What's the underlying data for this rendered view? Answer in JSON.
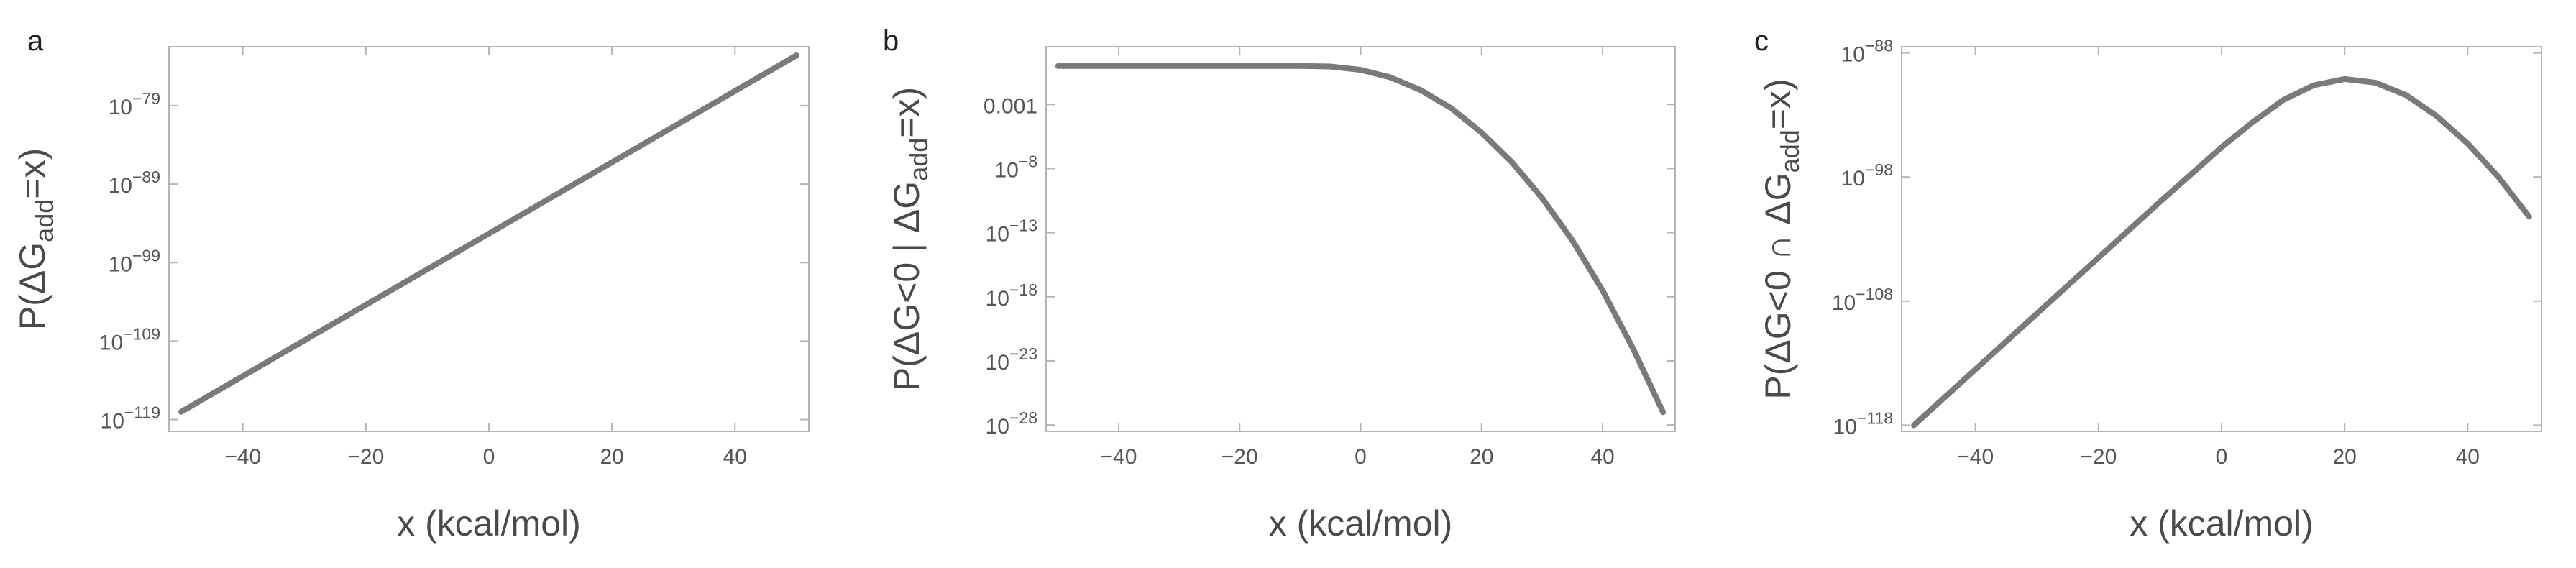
{
  "chart_data": [
    {
      "type": "line",
      "panel": "a",
      "xlabel": "x (kcal/mol)",
      "ylabel": "P(ΔG_add=x)",
      "ylabel_main": "P(ΔG",
      "ylabel_sub": "add",
      "ylabel_tail": "=x)",
      "y_scale": "log",
      "xlim": [
        -52,
        52
      ],
      "ylim_exp": [
        -120.5,
        -71.5
      ],
      "x_ticks": [
        -40,
        -20,
        0,
        20,
        40
      ],
      "x_tick_labels": [
        "−40",
        "−20",
        "0",
        "20",
        "40"
      ],
      "y_ticks_exp": [
        -119,
        -109,
        -99,
        -89,
        -79
      ],
      "y_tick_labels": [
        {
          "base": "10",
          "exp": "−119"
        },
        {
          "base": "10",
          "exp": "−109"
        },
        {
          "base": "10",
          "exp": "−99"
        },
        {
          "base": "10",
          "exp": "−89"
        },
        {
          "base": "10",
          "exp": "−79"
        }
      ],
      "series": [
        {
          "x": [
            -50,
            0,
            50
          ],
          "y_exp": [
            -118.0,
            -95.3,
            -72.6
          ]
        }
      ]
    },
    {
      "type": "line",
      "panel": "b",
      "xlabel": "x (kcal/mol)",
      "ylabel": "P(ΔG<0 | ΔG_add=x)",
      "ylabel_main": "P(ΔG<0 | ΔG",
      "ylabel_sub": "add",
      "ylabel_tail": "=x)",
      "y_scale": "log",
      "xlim": [
        -52,
        52
      ],
      "ylim_exp": [
        -28.5,
        1.5
      ],
      "x_ticks": [
        -40,
        -20,
        0,
        20,
        40
      ],
      "x_tick_labels": [
        "−40",
        "−20",
        "0",
        "20",
        "40"
      ],
      "y_ticks_exp": [
        -28,
        -23,
        -18,
        -13,
        -8,
        -3
      ],
      "y_tick_labels": [
        {
          "base": "10",
          "exp": "−28"
        },
        {
          "base": "10",
          "exp": "−23"
        },
        {
          "base": "10",
          "exp": "−18"
        },
        {
          "base": "10",
          "exp": "−13"
        },
        {
          "base": "10",
          "exp": "−8"
        },
        {
          "base": "",
          "exp": "",
          "text": "0.001"
        }
      ],
      "series": [
        {
          "x": [
            -50,
            -40,
            -30,
            -20,
            -10,
            -5,
            0,
            5,
            10,
            15,
            20,
            25,
            30,
            35,
            40,
            45,
            50
          ],
          "y_exp": [
            0,
            0,
            0,
            0,
            0,
            -0.04,
            -0.3,
            -0.9,
            -1.9,
            -3.3,
            -5.2,
            -7.5,
            -10.3,
            -13.6,
            -17.5,
            -22.0,
            -27.0
          ]
        }
      ]
    },
    {
      "type": "line",
      "panel": "c",
      "xlabel": "x (kcal/mol)",
      "ylabel": "P(ΔG<0 ∩ ΔG_add=x)",
      "ylabel_main": "P(ΔG<0 ∩ ΔG",
      "ylabel_sub": "add",
      "ylabel_tail": "=x)",
      "y_scale": "log",
      "xlim": [
        -52,
        52
      ],
      "ylim_exp": [
        -118.5,
        -87.5
      ],
      "x_ticks": [
        -40,
        -20,
        0,
        20,
        40
      ],
      "x_tick_labels": [
        "−40",
        "−20",
        "0",
        "20",
        "40"
      ],
      "y_ticks_exp": [
        -118,
        -108,
        -98,
        -88
      ],
      "y_tick_labels": [
        {
          "base": "10",
          "exp": "−118"
        },
        {
          "base": "10",
          "exp": "−108"
        },
        {
          "base": "10",
          "exp": "−98"
        },
        {
          "base": "10",
          "exp": "−88"
        }
      ],
      "series": [
        {
          "x": [
            -50,
            -40,
            -30,
            -20,
            -10,
            0,
            5,
            10,
            15,
            20,
            25,
            30,
            35,
            40,
            45,
            50
          ],
          "y_exp": [
            -118.0,
            -113.5,
            -109.0,
            -104.5,
            -100.0,
            -95.6,
            -93.6,
            -91.8,
            -90.6,
            -90.1,
            -90.4,
            -91.4,
            -93.1,
            -95.3,
            -98.0,
            -101.2
          ]
        }
      ]
    }
  ]
}
